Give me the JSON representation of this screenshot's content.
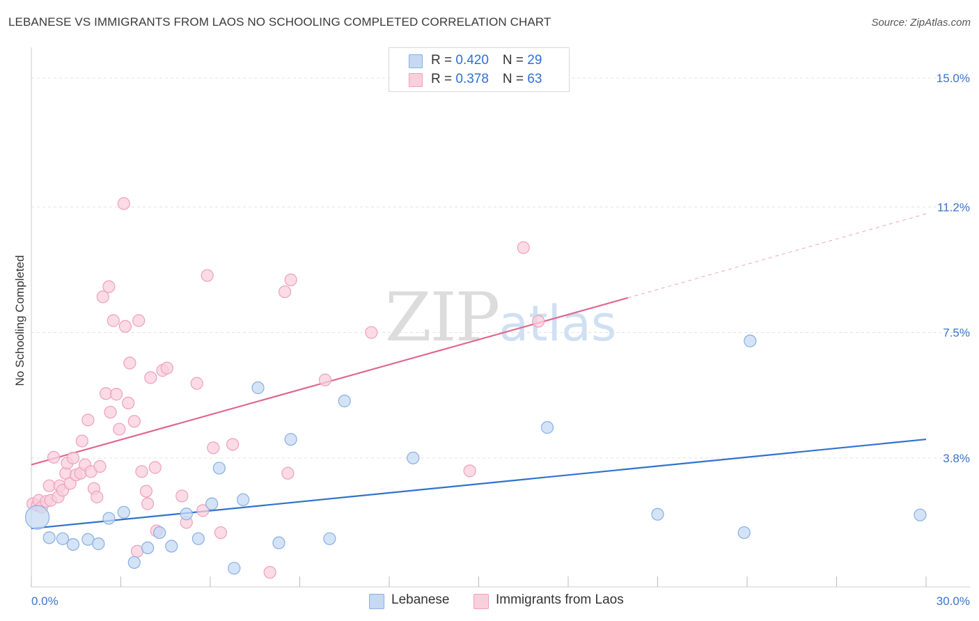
{
  "title": "LEBANESE VS IMMIGRANTS FROM LAOS NO SCHOOLING COMPLETED CORRELATION CHART",
  "source": "Source: ZipAtlas.com",
  "watermark": {
    "zip": "ZIP",
    "atlas": "atlas"
  },
  "legend_top": [
    {
      "r_label": "R = ",
      "r_value": "0.420",
      "n_label": "N = ",
      "n_value": "29"
    },
    {
      "r_label": "R = ",
      "r_value": " 0.378",
      "n_label": "N = ",
      "n_value": "63"
    }
  ],
  "legend_bottom": [
    {
      "label": "Lebanese"
    },
    {
      "label": "Immigrants from Laos"
    }
  ],
  "colors": {
    "blue_fill": "#c6d9f3",
    "blue_stroke": "#86afe3",
    "blue_line": "#2f72cf",
    "pink_fill": "#f9cfdc",
    "pink_stroke": "#eea0ba",
    "pink_line": "#e0678f",
    "tick_text": "#3a74c8",
    "grid": "#e2e2e2"
  },
  "chart_data": {
    "type": "scatter",
    "title": "LEBANESE VS IMMIGRANTS FROM LAOS NO SCHOOLING COMPLETED CORRELATION CHART",
    "xlabel": "",
    "ylabel": "No Schooling Completed",
    "xlim": [
      0,
      30
    ],
    "ylim": [
      0,
      15.7
    ],
    "x_tick_labels": [
      {
        "value": 0,
        "label": "0.0%"
      },
      {
        "value": 30,
        "label": "30.0%"
      }
    ],
    "y_ticks": [
      {
        "value": 3.8,
        "label": "3.8%"
      },
      {
        "value": 7.5,
        "label": "7.5%"
      },
      {
        "value": 11.2,
        "label": "11.2%"
      },
      {
        "value": 15.0,
        "label": "15.0%"
      }
    ],
    "series": [
      {
        "name": "Lebanese",
        "r": 0.42,
        "n": 29,
        "trend": {
          "x": [
            0,
            30
          ],
          "y": [
            1.72,
            4.35
          ],
          "dashed_extension": false
        },
        "points": [
          {
            "x": 0.2,
            "y": 2.05,
            "big": true
          },
          {
            "x": 0.6,
            "y": 1.45
          },
          {
            "x": 1.05,
            "y": 1.42
          },
          {
            "x": 1.4,
            "y": 1.25
          },
          {
            "x": 1.9,
            "y": 1.4
          },
          {
            "x": 2.25,
            "y": 1.27
          },
          {
            "x": 2.6,
            "y": 2.02
          },
          {
            "x": 3.1,
            "y": 2.2
          },
          {
            "x": 3.45,
            "y": 0.72
          },
          {
            "x": 3.9,
            "y": 1.15
          },
          {
            "x": 4.3,
            "y": 1.6
          },
          {
            "x": 4.7,
            "y": 1.2
          },
          {
            "x": 5.2,
            "y": 2.15
          },
          {
            "x": 5.6,
            "y": 1.42
          },
          {
            "x": 6.05,
            "y": 2.45
          },
          {
            "x": 6.3,
            "y": 3.5
          },
          {
            "x": 6.8,
            "y": 0.55
          },
          {
            "x": 7.1,
            "y": 2.57
          },
          {
            "x": 7.6,
            "y": 5.87
          },
          {
            "x": 8.3,
            "y": 1.3
          },
          {
            "x": 8.7,
            "y": 4.35
          },
          {
            "x": 10.0,
            "y": 1.42
          },
          {
            "x": 10.5,
            "y": 5.48
          },
          {
            "x": 12.8,
            "y": 3.8
          },
          {
            "x": 17.3,
            "y": 4.7
          },
          {
            "x": 21.0,
            "y": 2.14
          },
          {
            "x": 23.9,
            "y": 1.6
          },
          {
            "x": 24.1,
            "y": 7.25
          },
          {
            "x": 29.8,
            "y": 2.12
          }
        ]
      },
      {
        "name": "Immigrants from Laos",
        "r": 0.378,
        "n": 63,
        "trend": {
          "x": [
            0,
            20
          ],
          "y": [
            3.6,
            8.52
          ],
          "dashed_to": [
            30,
            11.0
          ]
        },
        "points": [
          {
            "x": 0.05,
            "y": 2.45
          },
          {
            "x": 0.2,
            "y": 2.4
          },
          {
            "x": 0.25,
            "y": 2.55
          },
          {
            "x": 0.35,
            "y": 2.35
          },
          {
            "x": 0.5,
            "y": 2.52
          },
          {
            "x": 0.65,
            "y": 2.55
          },
          {
            "x": 0.6,
            "y": 2.98
          },
          {
            "x": 0.75,
            "y": 3.82
          },
          {
            "x": 0.9,
            "y": 2.65
          },
          {
            "x": 0.95,
            "y": 2.98
          },
          {
            "x": 1.05,
            "y": 2.85
          },
          {
            "x": 1.15,
            "y": 3.35
          },
          {
            "x": 1.2,
            "y": 3.65
          },
          {
            "x": 1.3,
            "y": 3.05
          },
          {
            "x": 1.4,
            "y": 3.8
          },
          {
            "x": 1.5,
            "y": 3.3
          },
          {
            "x": 1.65,
            "y": 3.35
          },
          {
            "x": 1.7,
            "y": 4.3
          },
          {
            "x": 1.8,
            "y": 3.6
          },
          {
            "x": 1.9,
            "y": 4.92
          },
          {
            "x": 2.0,
            "y": 3.4
          },
          {
            "x": 2.1,
            "y": 2.9
          },
          {
            "x": 2.2,
            "y": 2.65
          },
          {
            "x": 2.3,
            "y": 3.55
          },
          {
            "x": 2.4,
            "y": 8.55
          },
          {
            "x": 2.5,
            "y": 5.7
          },
          {
            "x": 2.6,
            "y": 8.85
          },
          {
            "x": 2.65,
            "y": 5.15
          },
          {
            "x": 2.75,
            "y": 7.85
          },
          {
            "x": 2.85,
            "y": 5.68
          },
          {
            "x": 2.95,
            "y": 4.65
          },
          {
            "x": 3.1,
            "y": 11.3
          },
          {
            "x": 3.15,
            "y": 7.68
          },
          {
            "x": 3.25,
            "y": 5.42
          },
          {
            "x": 3.3,
            "y": 6.6
          },
          {
            "x": 3.45,
            "y": 4.88
          },
          {
            "x": 3.55,
            "y": 1.05
          },
          {
            "x": 3.6,
            "y": 7.85
          },
          {
            "x": 3.7,
            "y": 3.4
          },
          {
            "x": 3.85,
            "y": 2.82
          },
          {
            "x": 3.9,
            "y": 2.45
          },
          {
            "x": 4.0,
            "y": 6.17
          },
          {
            "x": 4.15,
            "y": 3.52
          },
          {
            "x": 4.2,
            "y": 1.65
          },
          {
            "x": 4.4,
            "y": 6.38
          },
          {
            "x": 4.55,
            "y": 6.45
          },
          {
            "x": 5.05,
            "y": 2.68
          },
          {
            "x": 5.2,
            "y": 1.9
          },
          {
            "x": 5.55,
            "y": 6.0
          },
          {
            "x": 5.75,
            "y": 2.25
          },
          {
            "x": 5.9,
            "y": 9.18
          },
          {
            "x": 6.1,
            "y": 4.1
          },
          {
            "x": 6.35,
            "y": 1.6
          },
          {
            "x": 6.75,
            "y": 4.2
          },
          {
            "x": 8.0,
            "y": 0.43
          },
          {
            "x": 8.5,
            "y": 8.7
          },
          {
            "x": 8.6,
            "y": 3.35
          },
          {
            "x": 8.7,
            "y": 9.05
          },
          {
            "x": 9.85,
            "y": 6.1
          },
          {
            "x": 11.4,
            "y": 7.5
          },
          {
            "x": 14.7,
            "y": 3.42
          },
          {
            "x": 16.5,
            "y": 10.0
          },
          {
            "x": 17.0,
            "y": 7.83
          }
        ]
      }
    ]
  }
}
